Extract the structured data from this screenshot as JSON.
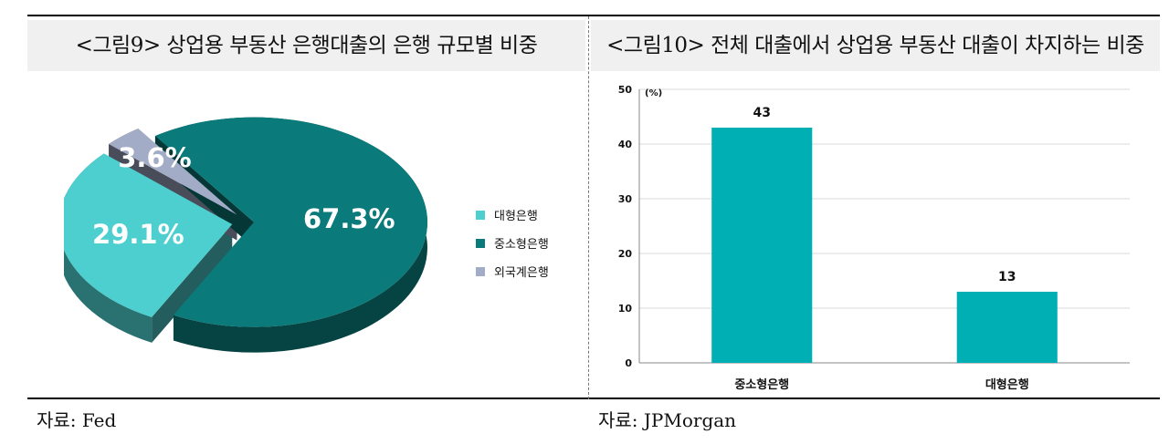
{
  "left_panel": {
    "title": "<그림9> 상업용 부동산 은행대출의 은행 규모별 비중",
    "source": "자료: Fed"
  },
  "right_panel": {
    "title": "<그림10> 전체 대출에서 상업용 부동산 대출이 차지하는 비중",
    "source": "자료: JPMorgan"
  },
  "chart_data": [
    {
      "type": "pie",
      "style": "3d-exploded",
      "categories": [
        "대형은행",
        "중소형은행",
        "외국계은행"
      ],
      "values": [
        29.1,
        67.3,
        3.6
      ],
      "labels": [
        "29.1%",
        "67.3%",
        "3.6%"
      ],
      "colors": [
        "#4dcfcf",
        "#0b7a7a",
        "#a3acc6"
      ],
      "legend_position": "right"
    },
    {
      "type": "bar",
      "categories": [
        "중소형은행",
        "대형은행"
      ],
      "values": [
        43,
        13
      ],
      "data_labels": [
        "43",
        "13"
      ],
      "unit_label": "(%)",
      "ylim": [
        0,
        50
      ],
      "yticks": [
        "0",
        "10",
        "20",
        "30",
        "40",
        "50"
      ],
      "grid": true,
      "bar_color": "#00afb4"
    }
  ]
}
